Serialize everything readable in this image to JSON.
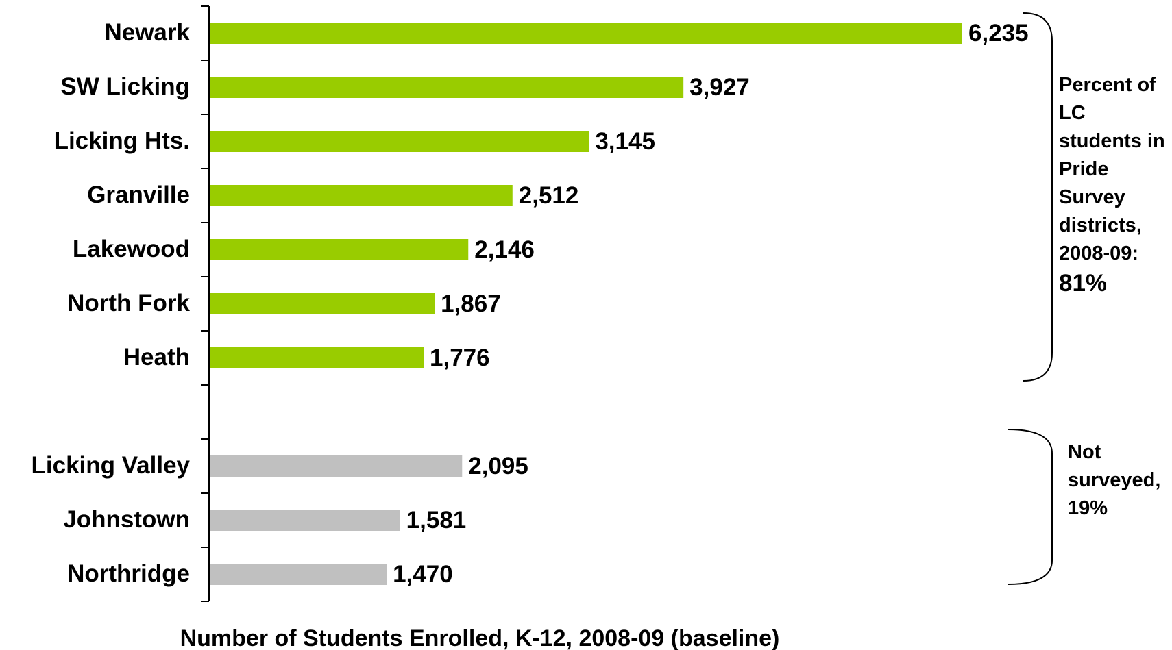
{
  "chart_data": {
    "type": "bar",
    "orientation": "horizontal",
    "x_label": "Number of Students Enrolled, K-12, 2008-09 (baseline)",
    "categories": [
      "Newark",
      "SW Licking",
      "Licking Hts.",
      "Granville",
      "Lakewood",
      "North Fork",
      "Heath",
      null,
      "Licking Valley",
      "Johnstown",
      "Northridge"
    ],
    "values": [
      6235,
      3927,
      3145,
      2512,
      2146,
      1867,
      1776,
      null,
      2095,
      1581,
      1470
    ],
    "value_labels": [
      "6,235",
      "3,927",
      "3,145",
      "2,512",
      "2,146",
      "1,867",
      "1,776",
      null,
      "2,095",
      "1,581",
      "1,470"
    ],
    "colors": [
      "#99cc00",
      "#99cc00",
      "#99cc00",
      "#99cc00",
      "#99cc00",
      "#99cc00",
      "#99cc00",
      null,
      "#c0c0c0",
      "#c0c0c0",
      "#c0c0c0"
    ],
    "annotations": [
      {
        "text": "Percent of LC students in Pride Survey districts, 2008-09:"
      },
      {
        "text": "81%"
      },
      {
        "text": "Not surveyed, 19%"
      }
    ]
  }
}
